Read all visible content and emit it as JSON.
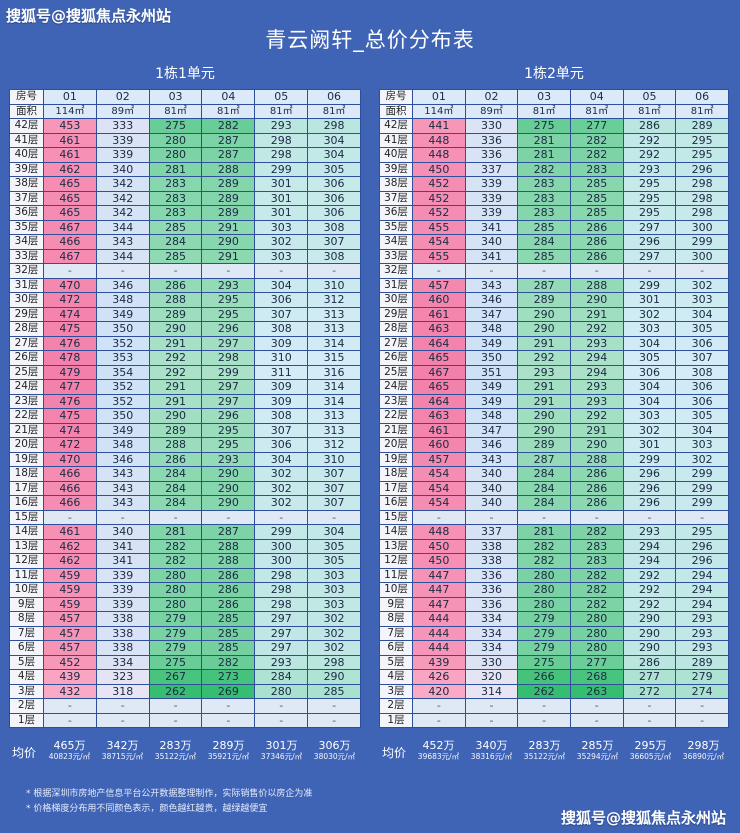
{
  "watermark_top": "搜狐号@搜狐焦点永州站",
  "watermark_bottom": "搜狐号@搜狐焦点永州站",
  "title": "青云阙轩_总价分布表",
  "header_labels": {
    "room": "房号",
    "area": "面积"
  },
  "avg_label": "均价",
  "notes": [
    "* 根据深圳市房地产信息平台公开数据整理制作，实际销售价以房企为准",
    "* 价格梯度分布用不同颜色表示，颜色越红越贵，越绿越便宜"
  ],
  "colors": {
    "background": "#3f63b5",
    "expensive": "#f39ab8",
    "cheap": "#2fbf71",
    "neutral": "#cfe5f7"
  },
  "buildings": [
    {
      "title": "1栋1单元",
      "rooms": [
        "01",
        "02",
        "03",
        "04",
        "05",
        "06"
      ],
      "areas": [
        "114㎡",
        "89㎡",
        "81㎡",
        "81㎡",
        "81㎡",
        "81㎡"
      ],
      "rows": [
        [
          "42层",
          "453",
          "333",
          "275",
          "282",
          "293",
          "298"
        ],
        [
          "41层",
          "461",
          "339",
          "280",
          "287",
          "298",
          "304"
        ],
        [
          "40层",
          "461",
          "339",
          "280",
          "287",
          "298",
          "304"
        ],
        [
          "39层",
          "462",
          "340",
          "281",
          "288",
          "299",
          "305"
        ],
        [
          "38层",
          "465",
          "342",
          "283",
          "289",
          "301",
          "306"
        ],
        [
          "37层",
          "465",
          "342",
          "283",
          "289",
          "301",
          "306"
        ],
        [
          "36层",
          "465",
          "342",
          "283",
          "289",
          "301",
          "306"
        ],
        [
          "35层",
          "467",
          "344",
          "285",
          "291",
          "303",
          "308"
        ],
        [
          "34层",
          "466",
          "343",
          "284",
          "290",
          "302",
          "307"
        ],
        [
          "33层",
          "467",
          "344",
          "285",
          "291",
          "303",
          "308"
        ],
        [
          "32层",
          "-",
          "-",
          "-",
          "-",
          "-",
          "-"
        ],
        [
          "31层",
          "470",
          "346",
          "286",
          "293",
          "304",
          "310"
        ],
        [
          "30层",
          "472",
          "348",
          "288",
          "295",
          "306",
          "312"
        ],
        [
          "29层",
          "474",
          "349",
          "289",
          "295",
          "307",
          "313"
        ],
        [
          "28层",
          "475",
          "350",
          "290",
          "296",
          "308",
          "313"
        ],
        [
          "27层",
          "476",
          "352",
          "291",
          "297",
          "309",
          "314"
        ],
        [
          "26层",
          "478",
          "353",
          "292",
          "298",
          "310",
          "315"
        ],
        [
          "25层",
          "479",
          "354",
          "292",
          "299",
          "311",
          "316"
        ],
        [
          "24层",
          "477",
          "352",
          "291",
          "297",
          "309",
          "314"
        ],
        [
          "23层",
          "476",
          "352",
          "291",
          "297",
          "309",
          "314"
        ],
        [
          "22层",
          "475",
          "350",
          "290",
          "296",
          "308",
          "313"
        ],
        [
          "21层",
          "474",
          "349",
          "289",
          "295",
          "307",
          "313"
        ],
        [
          "20层",
          "472",
          "348",
          "288",
          "295",
          "306",
          "312"
        ],
        [
          "19层",
          "470",
          "346",
          "286",
          "293",
          "304",
          "310"
        ],
        [
          "18层",
          "466",
          "343",
          "284",
          "290",
          "302",
          "307"
        ],
        [
          "17层",
          "466",
          "343",
          "284",
          "290",
          "302",
          "307"
        ],
        [
          "16层",
          "466",
          "343",
          "284",
          "290",
          "302",
          "307"
        ],
        [
          "15层",
          "-",
          "-",
          "-",
          "-",
          "-",
          "-"
        ],
        [
          "14层",
          "461",
          "340",
          "281",
          "287",
          "299",
          "304"
        ],
        [
          "13层",
          "462",
          "341",
          "282",
          "288",
          "300",
          "305"
        ],
        [
          "12层",
          "462",
          "341",
          "282",
          "288",
          "300",
          "305"
        ],
        [
          "11层",
          "459",
          "339",
          "280",
          "286",
          "298",
          "303"
        ],
        [
          "10层",
          "459",
          "339",
          "280",
          "286",
          "298",
          "303"
        ],
        [
          "9层",
          "459",
          "339",
          "280",
          "286",
          "298",
          "303"
        ],
        [
          "8层",
          "457",
          "338",
          "279",
          "285",
          "297",
          "302"
        ],
        [
          "7层",
          "457",
          "338",
          "279",
          "285",
          "297",
          "302"
        ],
        [
          "6层",
          "457",
          "338",
          "279",
          "285",
          "297",
          "302"
        ],
        [
          "5层",
          "452",
          "334",
          "275",
          "282",
          "293",
          "298"
        ],
        [
          "4层",
          "439",
          "323",
          "267",
          "273",
          "284",
          "290"
        ],
        [
          "3层",
          "432",
          "318",
          "262",
          "269",
          "280",
          "285"
        ],
        [
          "2层",
          "-",
          "-",
          "-",
          "-",
          "-",
          "-"
        ],
        [
          "1层",
          "-",
          "-",
          "-",
          "-",
          "-",
          "-"
        ]
      ],
      "averages": [
        {
          "price": "465万",
          "unit": "40823元/㎡"
        },
        {
          "price": "342万",
          "unit": "38715元/㎡"
        },
        {
          "price": "283万",
          "unit": "35122元/㎡"
        },
        {
          "price": "289万",
          "unit": "35921元/㎡"
        },
        {
          "price": "301万",
          "unit": "37346元/㎡"
        },
        {
          "price": "306万",
          "unit": "38030元/㎡"
        }
      ]
    },
    {
      "title": "1栋2单元",
      "rooms": [
        "01",
        "02",
        "03",
        "04",
        "05",
        "06"
      ],
      "areas": [
        "114㎡",
        "89㎡",
        "81㎡",
        "81㎡",
        "81㎡",
        "81㎡"
      ],
      "rows": [
        [
          "42层",
          "441",
          "330",
          "275",
          "277",
          "286",
          "289"
        ],
        [
          "41层",
          "448",
          "336",
          "281",
          "282",
          "292",
          "295"
        ],
        [
          "40层",
          "448",
          "336",
          "281",
          "282",
          "292",
          "295"
        ],
        [
          "39层",
          "450",
          "337",
          "282",
          "283",
          "293",
          "296"
        ],
        [
          "38层",
          "452",
          "339",
          "283",
          "285",
          "295",
          "298"
        ],
        [
          "37层",
          "452",
          "339",
          "283",
          "285",
          "295",
          "298"
        ],
        [
          "36层",
          "452",
          "339",
          "283",
          "285",
          "295",
          "298"
        ],
        [
          "35层",
          "455",
          "341",
          "285",
          "286",
          "297",
          "300"
        ],
        [
          "34层",
          "454",
          "340",
          "284",
          "286",
          "296",
          "299"
        ],
        [
          "33层",
          "455",
          "341",
          "285",
          "286",
          "297",
          "300"
        ],
        [
          "32层",
          "-",
          "-",
          "-",
          "-",
          "-",
          "-"
        ],
        [
          "31层",
          "457",
          "343",
          "287",
          "288",
          "299",
          "302"
        ],
        [
          "30层",
          "460",
          "346",
          "289",
          "290",
          "301",
          "303"
        ],
        [
          "29层",
          "461",
          "347",
          "290",
          "291",
          "302",
          "304"
        ],
        [
          "28层",
          "463",
          "348",
          "290",
          "292",
          "303",
          "305"
        ],
        [
          "27层",
          "464",
          "349",
          "291",
          "293",
          "304",
          "306"
        ],
        [
          "26层",
          "465",
          "350",
          "292",
          "294",
          "305",
          "307"
        ],
        [
          "25层",
          "467",
          "351",
          "293",
          "294",
          "306",
          "308"
        ],
        [
          "24层",
          "465",
          "349",
          "291",
          "293",
          "304",
          "306"
        ],
        [
          "23层",
          "464",
          "349",
          "291",
          "293",
          "304",
          "306"
        ],
        [
          "22层",
          "463",
          "348",
          "290",
          "292",
          "303",
          "305"
        ],
        [
          "21层",
          "461",
          "347",
          "290",
          "291",
          "302",
          "304"
        ],
        [
          "20层",
          "460",
          "346",
          "289",
          "290",
          "301",
          "303"
        ],
        [
          "19层",
          "457",
          "343",
          "287",
          "288",
          "299",
          "302"
        ],
        [
          "18层",
          "454",
          "340",
          "284",
          "286",
          "296",
          "299"
        ],
        [
          "17层",
          "454",
          "340",
          "284",
          "286",
          "296",
          "299"
        ],
        [
          "16层",
          "454",
          "340",
          "284",
          "286",
          "296",
          "299"
        ],
        [
          "15层",
          "-",
          "-",
          "-",
          "-",
          "-",
          "-"
        ],
        [
          "14层",
          "448",
          "337",
          "281",
          "282",
          "293",
          "295"
        ],
        [
          "13层",
          "450",
          "338",
          "282",
          "283",
          "294",
          "296"
        ],
        [
          "12层",
          "450",
          "338",
          "282",
          "283",
          "294",
          "296"
        ],
        [
          "11层",
          "447",
          "336",
          "280",
          "282",
          "292",
          "294"
        ],
        [
          "10层",
          "447",
          "336",
          "280",
          "282",
          "292",
          "294"
        ],
        [
          "9层",
          "447",
          "336",
          "280",
          "282",
          "292",
          "294"
        ],
        [
          "8层",
          "444",
          "334",
          "279",
          "280",
          "290",
          "293"
        ],
        [
          "7层",
          "444",
          "334",
          "279",
          "280",
          "290",
          "293"
        ],
        [
          "6层",
          "444",
          "334",
          "279",
          "280",
          "290",
          "293"
        ],
        [
          "5层",
          "439",
          "330",
          "275",
          "277",
          "286",
          "289"
        ],
        [
          "4层",
          "426",
          "320",
          "266",
          "268",
          "277",
          "279"
        ],
        [
          "3层",
          "420",
          "314",
          "262",
          "263",
          "272",
          "274"
        ],
        [
          "2层",
          "-",
          "-",
          "-",
          "-",
          "-",
          "-"
        ],
        [
          "1层",
          "-",
          "-",
          "-",
          "-",
          "-",
          "-"
        ]
      ],
      "averages": [
        {
          "price": "452万",
          "unit": "39683元/㎡"
        },
        {
          "price": "340万",
          "unit": "38316元/㎡"
        },
        {
          "price": "283万",
          "unit": "35122元/㎡"
        },
        {
          "price": "285万",
          "unit": "35294元/㎡"
        },
        {
          "price": "295万",
          "unit": "36605元/㎡"
        },
        {
          "price": "298万",
          "unit": "36890元/㎡"
        }
      ]
    }
  ]
}
